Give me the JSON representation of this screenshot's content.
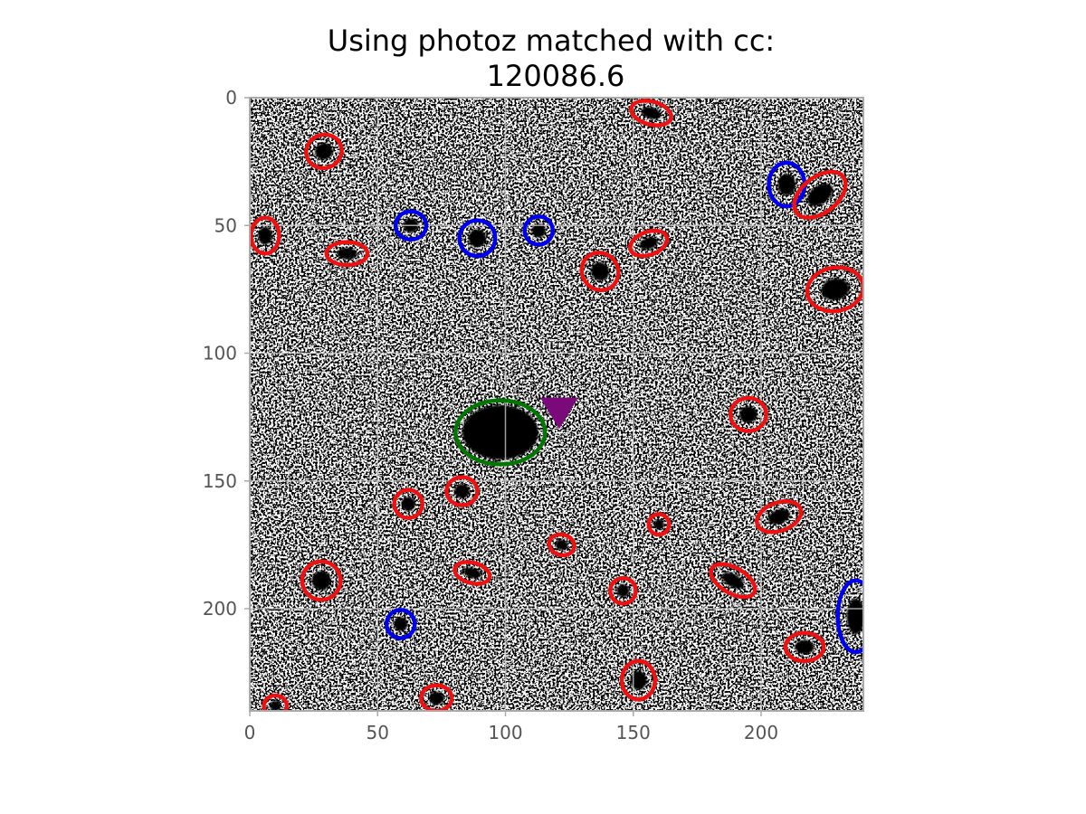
{
  "chart_data": {
    "type": "scatter",
    "title_line1": "Using photoz matched with cc:",
    "title_line2": "120086.6",
    "xlabel": "",
    "ylabel": "",
    "xlim": [
      0,
      240
    ],
    "ylim": [
      240,
      0
    ],
    "y_inverted": true,
    "grid": true,
    "xticks": [
      "0",
      "50",
      "100",
      "150",
      "200"
    ],
    "yticks": [
      "0",
      "50",
      "100",
      "150",
      "200"
    ],
    "background": "grayscale astronomical image cutout (noisy field with dark sources)",
    "colors": {
      "red": "#ee1111",
      "blue": "#0000ee",
      "green": "#007700",
      "marker": "#7a0a7a",
      "axis": "#aaaaaa",
      "grid": "#c8c8c8"
    },
    "target_marker": {
      "shape": "triangle-down",
      "x": 121,
      "y": 123,
      "color": "#7a0a7a"
    },
    "ellipses": [
      {
        "color": "green",
        "x": 98,
        "y": 131,
        "rx": 17.5,
        "ry": 12.5,
        "angle": 0
      },
      {
        "color": "blue",
        "x": 63,
        "y": 50,
        "rx": 6,
        "ry": 5.5,
        "angle": 0
      },
      {
        "color": "blue",
        "x": 89,
        "y": 55,
        "rx": 7,
        "ry": 7,
        "angle": 0
      },
      {
        "color": "blue",
        "x": 113,
        "y": 52,
        "rx": 5.5,
        "ry": 5.5,
        "angle": 0
      },
      {
        "color": "blue",
        "x": 210,
        "y": 34,
        "rx": 7,
        "ry": 8.5,
        "angle": 0
      },
      {
        "color": "blue",
        "x": 59,
        "y": 206,
        "rx": 5.5,
        "ry": 5.5,
        "angle": 0
      },
      {
        "color": "blue",
        "x": 237,
        "y": 203,
        "rx": 7,
        "ry": 14,
        "angle": 0
      },
      {
        "color": "red",
        "x": 29,
        "y": 21,
        "rx": 7,
        "ry": 6.5,
        "angle": -20
      },
      {
        "color": "red",
        "x": 157,
        "y": 6,
        "rx": 8,
        "ry": 4.5,
        "angle": 15
      },
      {
        "color": "red",
        "x": 223,
        "y": 38,
        "rx": 11.5,
        "ry": 7,
        "angle": -38
      },
      {
        "color": "red",
        "x": 6,
        "y": 54,
        "rx": 5.5,
        "ry": 7,
        "angle": 0
      },
      {
        "color": "red",
        "x": 38,
        "y": 61,
        "rx": 8,
        "ry": 4.5,
        "angle": 0
      },
      {
        "color": "red",
        "x": 156,
        "y": 57,
        "rx": 7.5,
        "ry": 4.5,
        "angle": -20
      },
      {
        "color": "red",
        "x": 137,
        "y": 68,
        "rx": 7,
        "ry": 7.5,
        "angle": -35
      },
      {
        "color": "red",
        "x": 229,
        "y": 75,
        "rx": 11,
        "ry": 8.5,
        "angle": -10
      },
      {
        "color": "red",
        "x": 195,
        "y": 124,
        "rx": 7,
        "ry": 6.5,
        "angle": 0
      },
      {
        "color": "red",
        "x": 83,
        "y": 154,
        "rx": 6,
        "ry": 5.5,
        "angle": 0
      },
      {
        "color": "red",
        "x": 62,
        "y": 159,
        "rx": 5.5,
        "ry": 5.5,
        "angle": 0
      },
      {
        "color": "red",
        "x": 207,
        "y": 164,
        "rx": 9,
        "ry": 5.5,
        "angle": -20
      },
      {
        "color": "red",
        "x": 160,
        "y": 167,
        "rx": 4,
        "ry": 4,
        "angle": 0
      },
      {
        "color": "red",
        "x": 122,
        "y": 175,
        "rx": 5,
        "ry": 4,
        "angle": 15
      },
      {
        "color": "red",
        "x": 28,
        "y": 189,
        "rx": 7.5,
        "ry": 7.5,
        "angle": 0
      },
      {
        "color": "red",
        "x": 87,
        "y": 186,
        "rx": 7,
        "ry": 4,
        "angle": 15
      },
      {
        "color": "red",
        "x": 189,
        "y": 189,
        "rx": 9.5,
        "ry": 5,
        "angle": 30
      },
      {
        "color": "red",
        "x": 146,
        "y": 193,
        "rx": 5,
        "ry": 5,
        "angle": 0
      },
      {
        "color": "red",
        "x": 217,
        "y": 215,
        "rx": 7.5,
        "ry": 5.5,
        "angle": 0
      },
      {
        "color": "red",
        "x": 152,
        "y": 228,
        "rx": 6.5,
        "ry": 7.5,
        "angle": 0
      },
      {
        "color": "red",
        "x": 73,
        "y": 235,
        "rx": 6,
        "ry": 5,
        "angle": 0
      },
      {
        "color": "red",
        "x": 10,
        "y": 238,
        "rx": 4.5,
        "ry": 4,
        "angle": 0
      }
    ]
  }
}
